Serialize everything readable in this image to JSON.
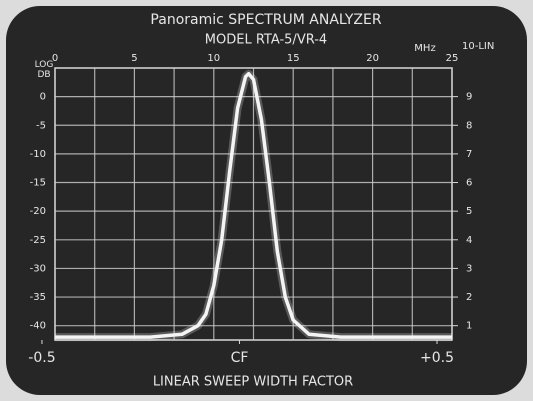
{
  "chart_data": {
    "type": "line",
    "title": "Panoramic SPECTRUM ANALYZER",
    "subtitle": "MODEL RTA-5/VR-4",
    "x_label": "MHz",
    "y_label": "LOG DB",
    "y2_label": "10-LIN",
    "x2_label": "LINEAR SWEEP WIDTH FACTOR",
    "color": "#f4f4f4",
    "grid": true,
    "x": [
      0,
      2,
      4,
      6,
      8,
      9,
      9.5,
      10,
      10.5,
      11,
      11.5,
      12,
      12.2,
      12.5,
      13,
      13.5,
      14,
      14.5,
      15,
      16,
      18,
      20,
      22,
      24,
      25
    ],
    "values": [
      -42,
      -42,
      -42,
      -42,
      -41.5,
      -40,
      -38,
      -33,
      -25,
      -13,
      -2,
      3.5,
      4,
      3,
      -4,
      -15,
      -27,
      -35,
      -39,
      -41.5,
      -42,
      -42,
      -42,
      -42,
      -42
    ],
    "xlim": [
      0,
      25
    ],
    "xticks": [
      0,
      5,
      10,
      15,
      20,
      25
    ],
    "ylim": [
      -42.5,
      5
    ],
    "yticks": [
      0,
      -5,
      -10,
      -15,
      -20,
      -25,
      -30,
      -35,
      -40
    ],
    "y2lim": [
      0.5,
      10
    ],
    "y2ticks": [
      1,
      2,
      3,
      4,
      5,
      6,
      7,
      8,
      9
    ],
    "x2lim": [
      -0.467,
      0.538
    ],
    "x2ticks": [
      -0.5,
      {
        "value": 0,
        "label": "CF"
      },
      {
        "value": 0.5,
        "label": "+0.5"
      }
    ]
  }
}
